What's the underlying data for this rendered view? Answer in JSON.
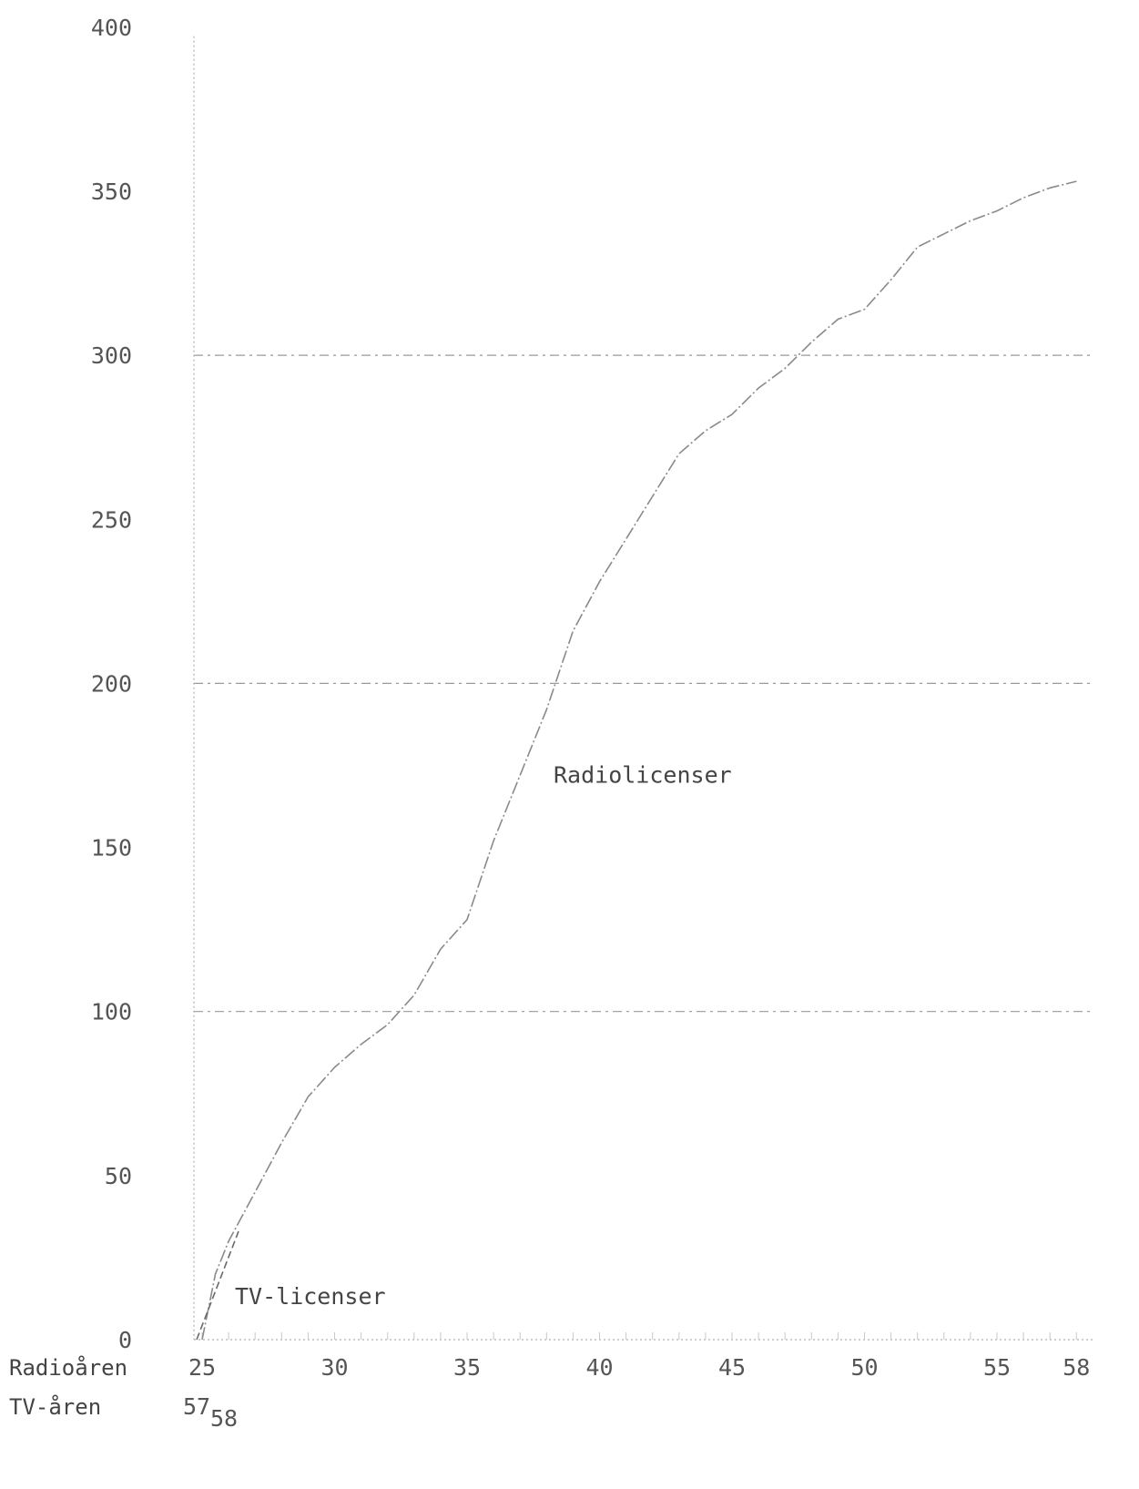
{
  "chart_data": {
    "type": "line",
    "y_ticks": [
      "0",
      "50",
      "100",
      "150",
      "200",
      "250",
      "300",
      "350",
      "400"
    ],
    "ylim": [
      0,
      400
    ],
    "x_row_labels": {
      "radio": "Radioåren",
      "tv": "TV-åren"
    },
    "radio_x_ticks": [
      "25",
      "30",
      "35",
      "40",
      "45",
      "50",
      "55",
      "58"
    ],
    "tv_x_ticks": {
      "start": "57",
      "end": "58"
    },
    "grid_y": [
      100,
      200,
      300
    ],
    "series": [
      {
        "name": "Radiolicenser",
        "x_axis": "Radioåren",
        "points": [
          [
            25,
            0
          ],
          [
            25.5,
            20
          ],
          [
            26,
            30
          ],
          [
            27,
            45
          ],
          [
            28,
            60
          ],
          [
            29,
            74
          ],
          [
            30,
            83
          ],
          [
            31,
            90
          ],
          [
            32,
            96
          ],
          [
            33,
            105
          ],
          [
            34,
            119
          ],
          [
            35,
            128
          ],
          [
            36,
            152
          ],
          [
            37,
            172
          ],
          [
            38,
            192
          ],
          [
            39,
            216
          ],
          [
            40,
            231
          ],
          [
            41,
            244
          ],
          [
            42,
            257
          ],
          [
            43,
            270
          ],
          [
            44,
            277
          ],
          [
            45,
            282
          ],
          [
            46,
            290
          ],
          [
            47,
            296
          ],
          [
            48,
            304
          ],
          [
            49,
            311
          ],
          [
            50,
            314
          ],
          [
            51,
            323
          ],
          [
            52,
            333
          ],
          [
            53,
            337
          ],
          [
            54,
            341
          ],
          [
            55,
            344
          ],
          [
            56,
            348
          ],
          [
            57,
            351
          ],
          [
            58,
            353
          ]
        ]
      },
      {
        "name": "TV-licenser",
        "x_axis": "TV-åren",
        "points": [
          [
            57,
            0
          ],
          [
            58,
            33
          ]
        ]
      }
    ]
  }
}
